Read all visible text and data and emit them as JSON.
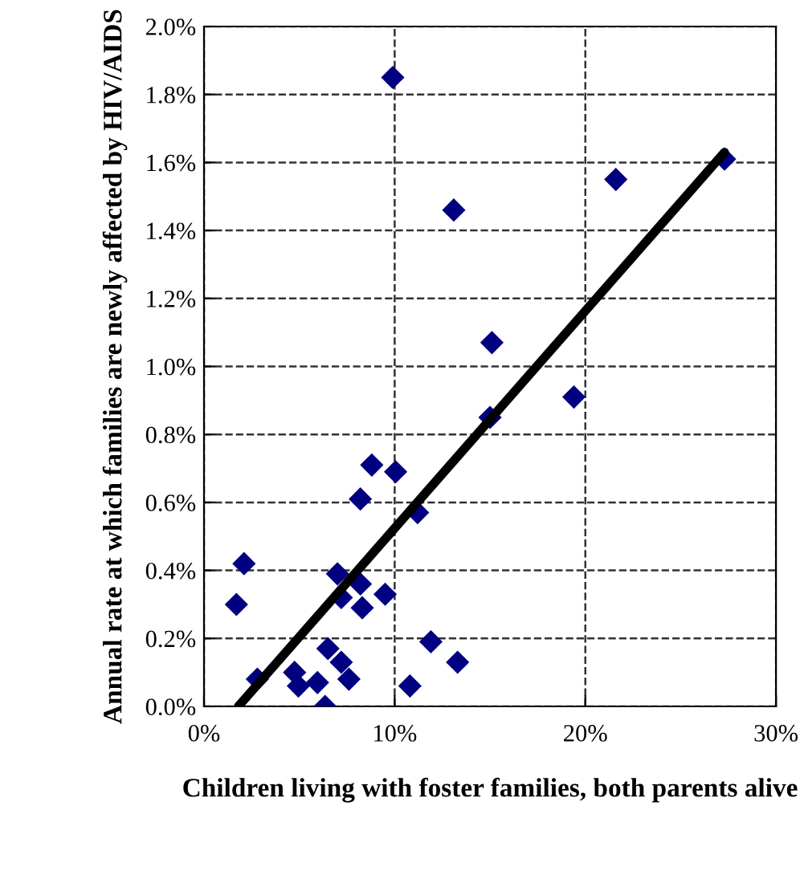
{
  "chart_data": {
    "type": "scatter",
    "xlabel": "Children living with foster families, both parents alive",
    "ylabel": "Annual rate at which families are newly affected by HIV/AIDS",
    "xlim": [
      0,
      30
    ],
    "ylim": [
      0,
      2.0
    ],
    "xticks": [
      {
        "value": 0,
        "label": "0%"
      },
      {
        "value": 10,
        "label": "10%"
      },
      {
        "value": 20,
        "label": "20%"
      },
      {
        "value": 30,
        "label": "30%"
      }
    ],
    "yticks": [
      {
        "value": 0,
        "label": "0.0%"
      },
      {
        "value": 0.2,
        "label": "0.2%"
      },
      {
        "value": 0.4,
        "label": "0.4%"
      },
      {
        "value": 0.6,
        "label": "0.6%"
      },
      {
        "value": 0.8,
        "label": "0.8%"
      },
      {
        "value": 1.0,
        "label": "1.0%"
      },
      {
        "value": 1.2,
        "label": "1.2%"
      },
      {
        "value": 1.4,
        "label": "1.4%"
      },
      {
        "value": 1.6,
        "label": "1.6%"
      },
      {
        "value": 1.8,
        "label": "1.8%"
      },
      {
        "value": 2.0,
        "label": "2.0%"
      }
    ],
    "grid": true,
    "legend": false,
    "series": [
      {
        "color": "#000080",
        "marker": "diamond",
        "x": [
          9.9,
          27.3,
          21.6,
          13.1,
          15.1,
          19.4,
          15.0,
          8.8,
          10.05,
          8.2,
          11.2,
          2.1,
          1.7,
          7.0,
          8.2,
          7.2,
          8.3,
          9.5,
          6.5,
          7.2,
          7.6,
          5.95,
          4.75,
          4.95,
          6.35,
          2.8,
          11.9,
          13.3,
          10.8
        ],
        "values": [
          1.85,
          1.61,
          1.55,
          1.46,
          1.07,
          0.91,
          0.85,
          0.71,
          0.69,
          0.61,
          0.57,
          0.42,
          0.3,
          0.39,
          0.36,
          0.32,
          0.29,
          0.33,
          0.17,
          0.13,
          0.08,
          0.07,
          0.1,
          0.06,
          0.0,
          0.08,
          0.19,
          0.13,
          0.06
        ]
      },
      {
        "type": "line",
        "color": "#000000",
        "marker": "none",
        "line_style": "solid",
        "x": [
          1.8,
          27.3
        ],
        "values": [
          0,
          1.63
        ]
      }
    ]
  }
}
